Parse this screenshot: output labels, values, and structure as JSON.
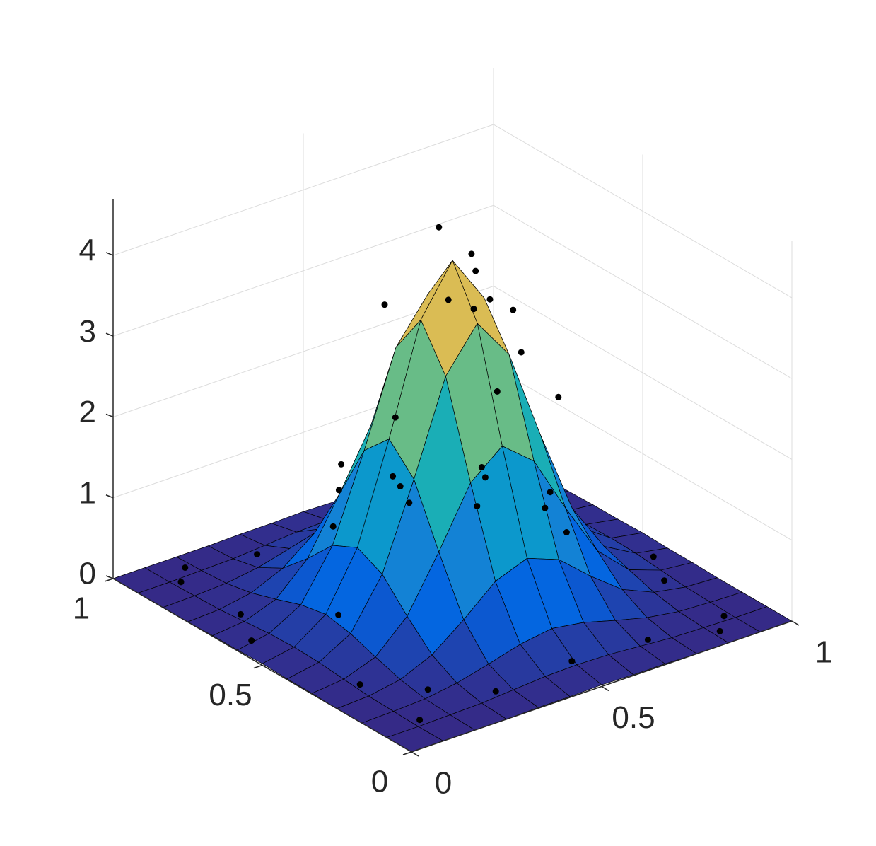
{
  "chart_data": {
    "type": "surface",
    "xlim": [
      0,
      1
    ],
    "ylim": [
      0,
      1
    ],
    "zlim": [
      0,
      4.7
    ],
    "xticks": [
      0,
      0.5,
      1
    ],
    "yticks": [
      0,
      0.5,
      1
    ],
    "zticks": [
      0,
      1,
      2,
      3,
      4
    ],
    "grid": true,
    "colormap": [
      "#352a87",
      "#0363e1",
      "#1485d4",
      "#06a7c6",
      "#38b99e",
      "#92bf73",
      "#d9ba56",
      "#f8fa0d"
    ],
    "edge_color": "#000000",
    "surface": {
      "x": [
        0,
        0.0833,
        0.1667,
        0.25,
        0.3333,
        0.4167,
        0.5,
        0.5833,
        0.6667,
        0.75,
        0.8333,
        0.9167,
        1
      ],
      "y": [
        0,
        0.0833,
        0.1667,
        0.25,
        0.3333,
        0.4167,
        0.5,
        0.5833,
        0.6667,
        0.75,
        0.8333,
        0.9167,
        1
      ],
      "z": [
        [
          0,
          0,
          0,
          0,
          0.01,
          0.01,
          0.02,
          0.01,
          0.01,
          0,
          0,
          0,
          0
        ],
        [
          0,
          0,
          0.01,
          0.02,
          0.05,
          0.08,
          0.09,
          0.08,
          0.05,
          0.02,
          0.01,
          0,
          0
        ],
        [
          0,
          0.01,
          0.03,
          0.09,
          0.19,
          0.3,
          0.36,
          0.3,
          0.19,
          0.09,
          0.03,
          0.01,
          0
        ],
        [
          0,
          0.02,
          0.09,
          0.26,
          0.56,
          0.9,
          1.05,
          0.9,
          0.56,
          0.26,
          0.09,
          0.02,
          0
        ],
        [
          0.01,
          0.05,
          0.19,
          0.56,
          1.22,
          1.94,
          2.26,
          1.94,
          1.22,
          0.56,
          0.19,
          0.05,
          0.01
        ],
        [
          0.01,
          0.08,
          0.3,
          0.9,
          1.94,
          3.08,
          3.6,
          3.08,
          1.94,
          0.9,
          0.3,
          0.08,
          0.01
        ],
        [
          0.02,
          0.09,
          0.36,
          1.05,
          2.26,
          3.6,
          4.2,
          3.6,
          2.26,
          1.05,
          0.36,
          0.09,
          0.02
        ],
        [
          0.01,
          0.08,
          0.3,
          0.9,
          1.94,
          3.08,
          3.6,
          3.08,
          1.94,
          0.9,
          0.3,
          0.08,
          0.01
        ],
        [
          0.01,
          0.05,
          0.19,
          0.56,
          1.22,
          1.94,
          2.26,
          1.94,
          1.22,
          0.56,
          0.19,
          0.05,
          0.01
        ],
        [
          0,
          0.02,
          0.09,
          0.26,
          0.56,
          0.9,
          1.05,
          0.9,
          0.56,
          0.26,
          0.09,
          0.02,
          0
        ],
        [
          0,
          0.01,
          0.03,
          0.09,
          0.19,
          0.3,
          0.36,
          0.3,
          0.19,
          0.09,
          0.03,
          0.01,
          0
        ],
        [
          0,
          0,
          0.01,
          0.02,
          0.05,
          0.08,
          0.09,
          0.08,
          0.05,
          0.02,
          0.01,
          0,
          0
        ],
        [
          0,
          0,
          0,
          0,
          0.01,
          0.01,
          0.02,
          0.01,
          0.01,
          0,
          0,
          0,
          0
        ]
      ]
    },
    "points": {
      "color": "#000000",
      "x": [
        0.48,
        0.55,
        0.45,
        0.52,
        0.6,
        0.4,
        0.62,
        0.5,
        0.35,
        0.65,
        0.3,
        0.7,
        0.6,
        0.42,
        0.28,
        0.72,
        0.5,
        0.38,
        0.1,
        0.3,
        0.5,
        0.7,
        0.9,
        0.1,
        0.9,
        0.1,
        0.9,
        0.1,
        0.3,
        0.5,
        0.7,
        0.9,
        0.2,
        0.8,
        0.2,
        0.8,
        0.05,
        0.95,
        0.15,
        0.85
      ],
      "y": [
        0.52,
        0.5,
        0.45,
        0.4,
        0.55,
        0.6,
        0.45,
        0.35,
        0.5,
        0.62,
        0.42,
        0.4,
        0.3,
        0.3,
        0.6,
        0.55,
        0.7,
        0.72,
        0.1,
        0.1,
        0.1,
        0.1,
        0.1,
        0.3,
        0.3,
        0.7,
        0.7,
        0.9,
        0.9,
        0.9,
        0.9,
        0.9,
        0.5,
        0.5,
        0.2,
        0.8,
        0.6,
        0.4,
        0.95,
        0.05
      ],
      "z": [
        4.6,
        4.2,
        3.9,
        3.9,
        3.8,
        3.6,
        3.5,
        2.9,
        2.5,
        3.1,
        1.9,
        2.4,
        1.6,
        2.2,
        1.5,
        2.6,
        1.1,
        1.4,
        0.02,
        0.05,
        0.1,
        0.04,
        0.01,
        0.03,
        0.02,
        0.04,
        0.06,
        0.01,
        0.03,
        0.05,
        0.02,
        0.01,
        0.3,
        0.35,
        0.02,
        0.03,
        0.01,
        0.02,
        0,
        0.01
      ]
    }
  }
}
